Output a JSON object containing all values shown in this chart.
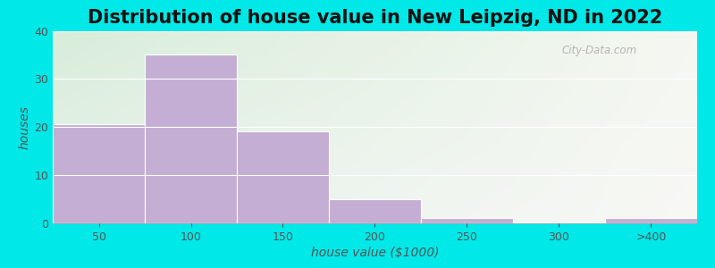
{
  "title": "Distribution of house value in New Leipzig, ND in 2022",
  "xlabel": "house value ($1000)",
  "ylabel": "houses",
  "bar_labels": [
    "50",
    "100",
    "150",
    "200",
    "250",
    "300",
    ">400"
  ],
  "bar_values": [
    20.5,
    35,
    19,
    5,
    1,
    0,
    1
  ],
  "bar_color": "#c4aed4",
  "bar_edgecolor": "#c4aed4",
  "ylim": [
    0,
    40
  ],
  "yticks": [
    0,
    10,
    20,
    30,
    40
  ],
  "background_outer": "#00e8e8",
  "bg_gradient_topleft": "#d8edda",
  "bg_gradient_right": "#f0f5ec",
  "bg_gradient_bottom": "#e8f0f0",
  "title_fontsize": 15,
  "axis_label_fontsize": 10,
  "tick_fontsize": 9,
  "watermark_text": "City-Data.com"
}
